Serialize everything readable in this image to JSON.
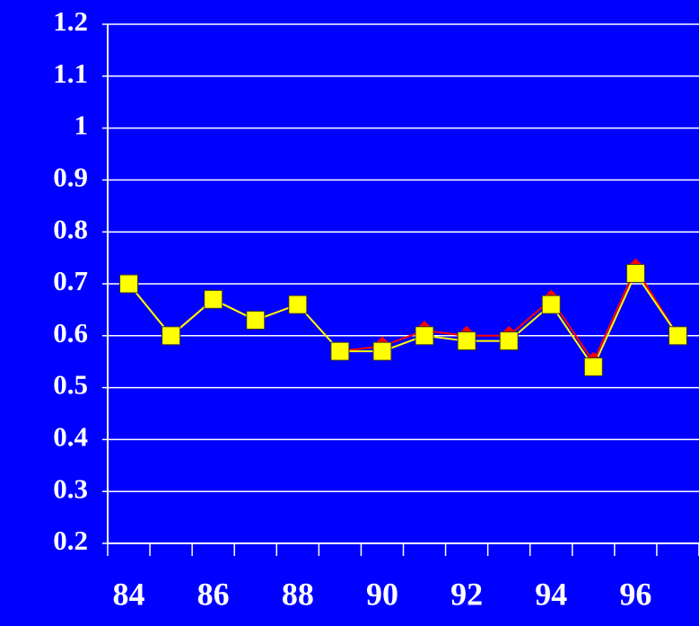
{
  "chart_data": {
    "type": "line",
    "categories": [
      "84",
      null,
      "86",
      null,
      "88",
      null,
      "90",
      null,
      "92",
      null,
      "94",
      null,
      "96",
      null
    ],
    "series": [
      {
        "color": "#ff0000",
        "marker": "diamond",
        "values": [
          0.7,
          0.6,
          0.67,
          0.63,
          0.66,
          0.57,
          0.58,
          0.61,
          0.6,
          0.6,
          0.67,
          0.55,
          0.73,
          0.6
        ]
      },
      {
        "color": "#ffff00",
        "marker": "square",
        "values": [
          0.7,
          0.6,
          0.67,
          0.63,
          0.66,
          0.57,
          0.57,
          0.6,
          0.59,
          0.59,
          0.66,
          0.54,
          0.72,
          0.6
        ]
      }
    ],
    "ylim": [
      0.2,
      1.2
    ],
    "yticks": [
      0.2,
      0.3,
      0.4,
      0.5,
      0.6,
      0.7,
      0.8,
      0.9,
      1,
      1.1,
      1.2
    ],
    "grid": true
  }
}
